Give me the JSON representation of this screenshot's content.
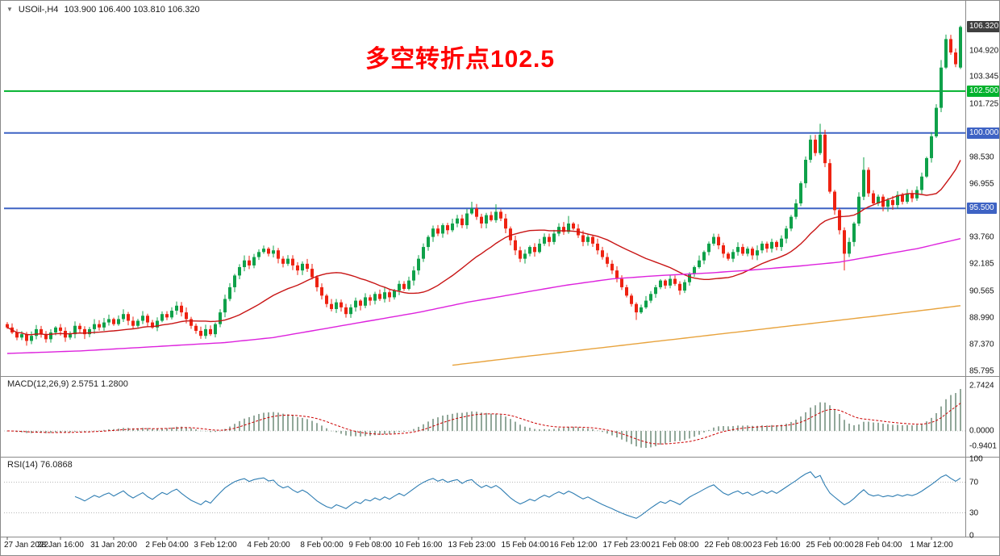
{
  "header": {
    "dropdown_icon": "▼",
    "symbol": "USOil-,H4",
    "ohlc": "103.900 106.400 103.810 106.320"
  },
  "annotation": {
    "text": "多空转折点102.5",
    "color": "#FF0000",
    "level": 102.5
  },
  "panels": {
    "macd": {
      "title": "MACD(12,26,9) 2.5751 1.2800",
      "axis_labels": [
        {
          "text": "2.7424",
          "value": 2.7424
        },
        {
          "text": "0.0000",
          "value": 0
        },
        {
          "text": "-0.9401",
          "value": -0.9401
        }
      ]
    },
    "rsi": {
      "title": "RSI(14) 76.0868",
      "axis_labels": [
        {
          "text": "100",
          "value": 100
        },
        {
          "text": "70",
          "value": 70
        },
        {
          "text": "30",
          "value": 30
        },
        {
          "text": "0",
          "value": 0
        }
      ],
      "levels": [
        70,
        30
      ]
    }
  },
  "price_axis": {
    "labels": [
      {
        "text": "104.920",
        "price": 104.92
      },
      {
        "text": "103.345",
        "price": 103.345
      },
      {
        "text": "101.725",
        "price": 101.725
      },
      {
        "text": "98.530",
        "price": 98.53
      },
      {
        "text": "96.955",
        "price": 96.955
      },
      {
        "text": "93.760",
        "price": 93.76
      },
      {
        "text": "92.185",
        "price": 92.185
      },
      {
        "text": "90.565",
        "price": 90.565
      },
      {
        "text": "88.990",
        "price": 88.99
      },
      {
        "text": "87.370",
        "price": 87.37
      },
      {
        "text": "85.795",
        "price": 85.795
      }
    ],
    "boxes": [
      {
        "text": "106.320",
        "price": 106.32,
        "bg": "#3f3f3f"
      },
      {
        "text": "102.500",
        "price": 102.5,
        "bg": "#00B22D"
      },
      {
        "text": "100.000",
        "price": 100,
        "bg": "#3E63C4"
      },
      {
        "text": "95.500",
        "price": 95.5,
        "bg": "#3E63C4"
      }
    ]
  },
  "time_axis": [
    {
      "label": "27 Jan 2022",
      "i": 0
    },
    {
      "label": "28 Jan 16:00",
      "i": 11
    },
    {
      "label": "31 Jan 20:00",
      "i": 22
    },
    {
      "label": "2 Feb 04:00",
      "i": 33
    },
    {
      "label": "3 Feb 12:00",
      "i": 43
    },
    {
      "label": "4 Feb 20:00",
      "i": 54
    },
    {
      "label": "8 Feb 00:00",
      "i": 65
    },
    {
      "label": "9 Feb 08:00",
      "i": 75
    },
    {
      "label": "10 Feb 16:00",
      "i": 85
    },
    {
      "label": "13 Feb 23:00",
      "i": 96
    },
    {
      "label": "15 Feb 04:00",
      "i": 107
    },
    {
      "label": "16 Feb 12:00",
      "i": 117
    },
    {
      "label": "17 Feb 23:00",
      "i": 128
    },
    {
      "label": "21 Feb 08:00",
      "i": 138
    },
    {
      "label": "22 Feb 08:00",
      "i": 149
    },
    {
      "label": "23 Feb 16:00",
      "i": 159
    },
    {
      "label": "25 Feb 00:00",
      "i": 170
    },
    {
      "label": "28 Feb 04:00",
      "i": 180
    },
    {
      "label": "1 Mar 12:00",
      "i": 191
    }
  ],
  "chart_data": {
    "type": "candlestick",
    "symbol": "USOil-",
    "timeframe": "H4",
    "title": "USOil-,H4 with MACD(12,26,9) and RSI(14)",
    "ylim": [
      85.6,
      107.4
    ],
    "last_bar": {
      "open": 103.9,
      "high": 106.4,
      "low": 103.81,
      "close": 106.32
    },
    "first_open": 88.6,
    "closes": [
      88.4,
      88.1,
      87.8,
      88.0,
      87.6,
      87.9,
      88.3,
      88.0,
      87.7,
      88.1,
      88.4,
      88.2,
      87.8,
      88.0,
      88.5,
      88.3,
      88.0,
      88.3,
      88.6,
      88.4,
      88.7,
      88.9,
      88.6,
      88.9,
      89.2,
      88.8,
      88.5,
      88.8,
      89.1,
      88.7,
      88.4,
      88.8,
      89.2,
      89.0,
      89.4,
      89.7,
      89.3,
      88.9,
      88.5,
      88.2,
      87.9,
      88.3,
      88.0,
      88.6,
      89.3,
      90.1,
      90.8,
      91.5,
      92.0,
      92.4,
      92.1,
      92.6,
      92.9,
      93.1,
      92.8,
      93.0,
      92.5,
      92.2,
      92.5,
      92.1,
      91.8,
      92.2,
      91.9,
      91.4,
      90.8,
      90.3,
      89.8,
      89.5,
      89.9,
      89.6,
      89.2,
      89.6,
      90.0,
      89.7,
      90.2,
      90.0,
      90.4,
      90.1,
      90.5,
      90.2,
      90.6,
      91.0,
      90.7,
      91.2,
      91.8,
      92.5,
      93.2,
      93.8,
      94.3,
      94.0,
      94.5,
      94.2,
      94.6,
      94.9,
      94.5,
      95.2,
      95.5,
      95.0,
      94.6,
      95.1,
      94.8,
      95.3,
      94.9,
      94.3,
      93.6,
      93.0,
      92.5,
      92.8,
      93.2,
      92.9,
      93.4,
      93.8,
      93.5,
      94.0,
      94.4,
      94.1,
      94.6,
      94.3,
      93.9,
      93.5,
      93.8,
      93.4,
      93.0,
      92.6,
      92.2,
      91.8,
      91.3,
      90.8,
      90.3,
      89.8,
      89.3,
      89.6,
      90.0,
      90.4,
      90.8,
      91.2,
      90.9,
      91.3,
      91.0,
      90.6,
      91.1,
      91.6,
      92.0,
      92.4,
      92.9,
      93.4,
      93.8,
      93.3,
      92.8,
      92.5,
      92.9,
      93.2,
      92.8,
      93.1,
      92.7,
      93.0,
      93.4,
      93.1,
      93.5,
      93.2,
      93.7,
      94.3,
      95.0,
      95.8,
      97.0,
      98.4,
      99.6,
      98.8,
      99.9,
      98.2,
      96.5,
      95.4,
      94.2,
      92.8,
      93.5,
      94.6,
      96.2,
      97.8,
      96.4,
      95.8,
      96.2,
      95.6,
      96.0,
      95.7,
      96.3,
      95.9,
      96.4,
      96.1,
      96.6,
      97.4,
      98.5,
      99.8,
      101.5,
      103.9,
      105.6,
      104.8,
      104.1,
      106.32
    ],
    "wick_overrides": {
      "35": [
        89.95,
        null
      ],
      "96": [
        95.9,
        null
      ],
      "101": [
        95.75,
        null
      ],
      "116": [
        95.05,
        null
      ],
      "130": [
        null,
        88.85
      ],
      "168": [
        100.55,
        null
      ],
      "173": [
        null,
        91.8
      ],
      "177": [
        98.55,
        null
      ],
      "193": [
        104.35,
        null
      ]
    },
    "hlines": [
      {
        "price": 102.5,
        "color": "#00B22D",
        "label": "102.500",
        "width": 2
      },
      {
        "price": 100.0,
        "color": "#3E63C4",
        "label": "100.000",
        "width": 2
      },
      {
        "price": 95.5,
        "color": "#3E63C4",
        "label": "95.500",
        "width": 2
      }
    ],
    "moving_averages": {
      "fast": {
        "type": "sma",
        "period": 24,
        "color": "#C81414"
      },
      "mid": {
        "type": "points",
        "color": "#DD22DD",
        "points": [
          [
            0,
            86.85
          ],
          [
            15,
            87.0
          ],
          [
            30,
            87.25
          ],
          [
            45,
            87.5
          ],
          [
            55,
            87.8
          ],
          [
            65,
            88.3
          ],
          [
            75,
            88.8
          ],
          [
            85,
            89.3
          ],
          [
            95,
            89.9
          ],
          [
            105,
            90.4
          ],
          [
            115,
            90.9
          ],
          [
            125,
            91.3
          ],
          [
            135,
            91.5
          ],
          [
            145,
            91.65
          ],
          [
            155,
            91.85
          ],
          [
            165,
            92.1
          ],
          [
            172,
            92.3
          ],
          [
            180,
            92.7
          ],
          [
            188,
            93.1
          ],
          [
            197,
            93.7
          ]
        ]
      },
      "slow": {
        "type": "points",
        "color": "#E8A33D",
        "points": [
          [
            92,
            86.15
          ],
          [
            105,
            86.6
          ],
          [
            120,
            87.1
          ],
          [
            135,
            87.6
          ],
          [
            150,
            88.1
          ],
          [
            165,
            88.6
          ],
          [
            180,
            89.1
          ],
          [
            190,
            89.45
          ],
          [
            197,
            89.7
          ]
        ]
      }
    },
    "macd": {
      "fast": 12,
      "slow": 26,
      "signal": 9,
      "main_value": 2.5751,
      "signal_value": 1.28,
      "ylim": [
        -1.47,
        3.19
      ]
    },
    "rsi": {
      "period": 14,
      "value": 76.0868,
      "ylim": [
        0,
        100
      ]
    },
    "colors": {
      "up": "#0FA14A",
      "down": "#EE2211",
      "macd_bar": "#92A89A",
      "macd_signal": "#CC0000",
      "rsi_line": "#2E7DB2",
      "separator": "#8a8a8a"
    }
  }
}
